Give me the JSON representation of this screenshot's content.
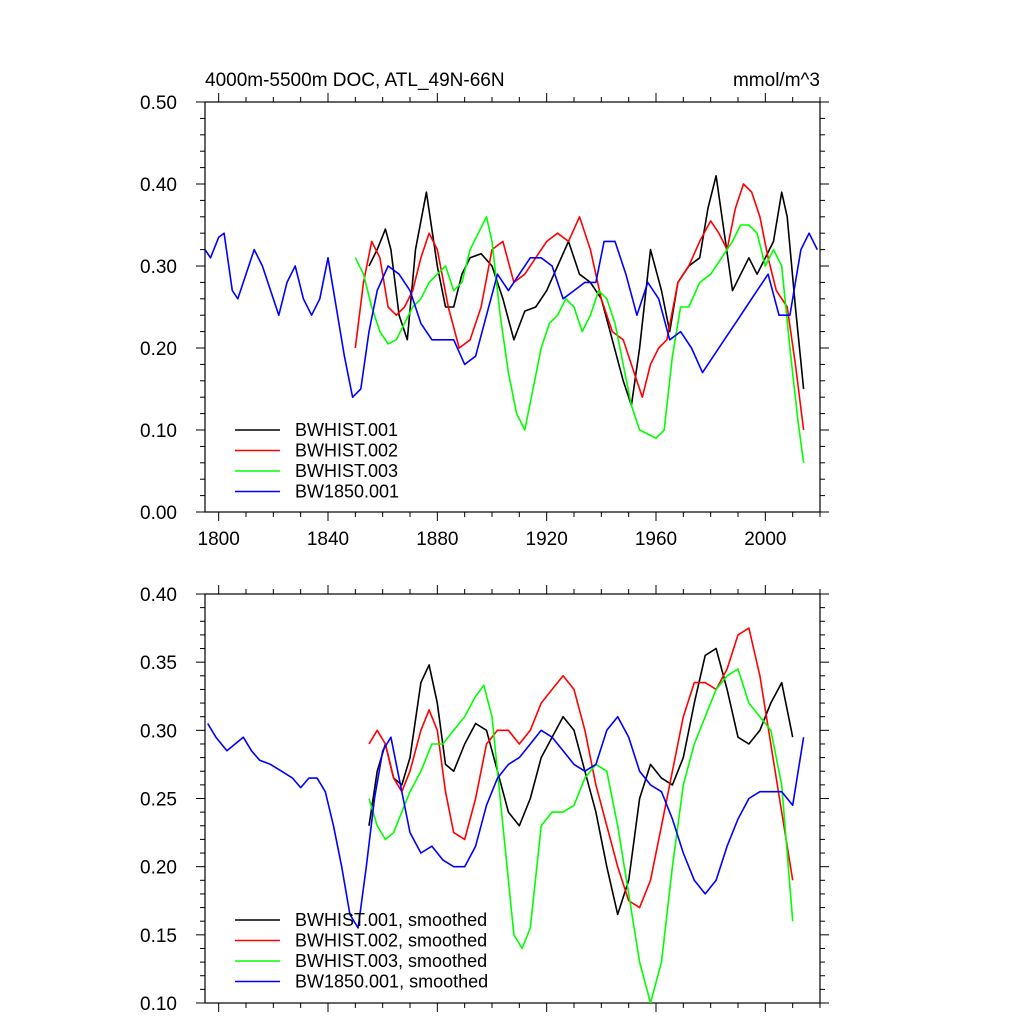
{
  "chart_data": [
    {
      "type": "line",
      "title": "4000m-5500m DOC, ATL_49N-66N",
      "units": "mmol/m^3",
      "xlabel": "",
      "ylabel": "",
      "xlim": [
        1795,
        2020
      ],
      "ylim": [
        0.0,
        0.5
      ],
      "xticks": [
        "1800",
        "1840",
        "1880",
        "1920",
        "1960",
        "2000"
      ],
      "yticks": [
        "0.00",
        "0.10",
        "0.20",
        "0.30",
        "0.40",
        "0.50"
      ],
      "grid": false,
      "legend_position": "bottom-left",
      "series": [
        {
          "name": "BWHIST.001",
          "color": "#000000",
          "x": [
            1855,
            1858,
            1861,
            1863,
            1866,
            1869,
            1872,
            1876,
            1880,
            1883,
            1886,
            1889,
            1892,
            1896,
            1900,
            1904,
            1908,
            1912,
            1916,
            1920,
            1924,
            1928,
            1932,
            1936,
            1940,
            1944,
            1948,
            1951,
            1954,
            1958,
            1962,
            1965,
            1968,
            1972,
            1976,
            1979,
            1982,
            1985,
            1988,
            1991,
            1994,
            1997,
            2000,
            2003,
            2006,
            2008,
            2011,
            2014
          ],
          "y": [
            0.3,
            0.32,
            0.345,
            0.32,
            0.24,
            0.21,
            0.32,
            0.39,
            0.3,
            0.25,
            0.25,
            0.29,
            0.31,
            0.315,
            0.3,
            0.26,
            0.21,
            0.245,
            0.25,
            0.27,
            0.3,
            0.33,
            0.29,
            0.28,
            0.26,
            0.21,
            0.16,
            0.13,
            0.2,
            0.32,
            0.27,
            0.22,
            0.28,
            0.3,
            0.31,
            0.37,
            0.41,
            0.34,
            0.27,
            0.29,
            0.31,
            0.29,
            0.31,
            0.33,
            0.39,
            0.36,
            0.25,
            0.15
          ]
        },
        {
          "name": "BWHIST.002",
          "color": "#ff0000",
          "x": [
            1850,
            1853,
            1856,
            1859,
            1862,
            1865,
            1868,
            1871,
            1874,
            1877,
            1880,
            1884,
            1888,
            1892,
            1896,
            1900,
            1904,
            1908,
            1912,
            1916,
            1920,
            1924,
            1928,
            1932,
            1936,
            1940,
            1944,
            1948,
            1952,
            1955,
            1958,
            1961,
            1964,
            1968,
            1972,
            1976,
            1980,
            1983,
            1986,
            1989,
            1992,
            1995,
            1998,
            2001,
            2004,
            2008,
            2011,
            2014
          ],
          "y": [
            0.2,
            0.28,
            0.33,
            0.31,
            0.25,
            0.24,
            0.25,
            0.27,
            0.31,
            0.34,
            0.32,
            0.25,
            0.2,
            0.21,
            0.25,
            0.32,
            0.33,
            0.28,
            0.29,
            0.31,
            0.33,
            0.34,
            0.33,
            0.36,
            0.32,
            0.26,
            0.22,
            0.21,
            0.17,
            0.14,
            0.18,
            0.2,
            0.21,
            0.28,
            0.3,
            0.33,
            0.355,
            0.34,
            0.32,
            0.37,
            0.4,
            0.39,
            0.36,
            0.31,
            0.27,
            0.25,
            0.18,
            0.1
          ]
        },
        {
          "name": "BWHIST.003",
          "color": "#00ff00",
          "x": [
            1850,
            1853,
            1856,
            1859,
            1862,
            1865,
            1868,
            1871,
            1874,
            1877,
            1880,
            1883,
            1886,
            1889,
            1892,
            1895,
            1898,
            1900,
            1903,
            1906,
            1909,
            1912,
            1915,
            1918,
            1921,
            1924,
            1927,
            1930,
            1933,
            1936,
            1939,
            1942,
            1945,
            1948,
            1951,
            1954,
            1957,
            1960,
            1963,
            1966,
            1969,
            1972,
            1976,
            1980,
            1984,
            1988,
            1991,
            1994,
            1997,
            2000,
            2003,
            2006,
            2009,
            2012,
            2014
          ],
          "y": [
            0.31,
            0.29,
            0.25,
            0.22,
            0.205,
            0.21,
            0.23,
            0.25,
            0.26,
            0.28,
            0.29,
            0.3,
            0.27,
            0.28,
            0.32,
            0.34,
            0.36,
            0.33,
            0.24,
            0.17,
            0.12,
            0.1,
            0.15,
            0.2,
            0.23,
            0.24,
            0.26,
            0.25,
            0.22,
            0.24,
            0.27,
            0.26,
            0.23,
            0.18,
            0.13,
            0.1,
            0.095,
            0.09,
            0.1,
            0.19,
            0.25,
            0.25,
            0.28,
            0.29,
            0.31,
            0.33,
            0.35,
            0.35,
            0.34,
            0.3,
            0.32,
            0.3,
            0.2,
            0.11,
            0.06
          ]
        },
        {
          "name": "BW1850.001",
          "color": "#0000ff",
          "x": [
            1795,
            1797,
            1800,
            1802,
            1805,
            1807,
            1810,
            1813,
            1816,
            1819,
            1822,
            1825,
            1828,
            1831,
            1834,
            1837,
            1840,
            1843,
            1846,
            1849,
            1852,
            1855,
            1858,
            1862,
            1866,
            1870,
            1874,
            1878,
            1882,
            1886,
            1890,
            1894,
            1898,
            1902,
            1906,
            1910,
            1914,
            1918,
            1922,
            1926,
            1930,
            1934,
            1938,
            1941,
            1945,
            1949,
            1953,
            1957,
            1961,
            1965,
            1969,
            1973,
            1977,
            1981,
            1985,
            1989,
            1993,
            1997,
            2001,
            2005,
            2009,
            2013,
            2016,
            2019
          ],
          "y": [
            0.32,
            0.31,
            0.335,
            0.34,
            0.27,
            0.26,
            0.29,
            0.32,
            0.3,
            0.27,
            0.24,
            0.28,
            0.3,
            0.26,
            0.24,
            0.26,
            0.31,
            0.25,
            0.19,
            0.14,
            0.15,
            0.22,
            0.27,
            0.3,
            0.29,
            0.27,
            0.23,
            0.21,
            0.21,
            0.21,
            0.18,
            0.19,
            0.24,
            0.29,
            0.27,
            0.29,
            0.31,
            0.31,
            0.3,
            0.26,
            0.27,
            0.28,
            0.28,
            0.33,
            0.33,
            0.29,
            0.24,
            0.28,
            0.26,
            0.21,
            0.22,
            0.2,
            0.17,
            0.19,
            0.21,
            0.23,
            0.25,
            0.27,
            0.29,
            0.24,
            0.24,
            0.32,
            0.34,
            0.32
          ]
        }
      ]
    },
    {
      "type": "line",
      "title": "",
      "xlabel": "",
      "ylabel": "",
      "xlim": [
        1795,
        2020
      ],
      "ylim": [
        0.1,
        0.4
      ],
      "xticks": [],
      "yticks": [
        "0.10",
        "0.15",
        "0.20",
        "0.25",
        "0.30",
        "0.35",
        "0.40"
      ],
      "grid": false,
      "legend_position": "bottom-left",
      "series": [
        {
          "name": "BWHIST.001, smoothed",
          "color": "#000000",
          "x": [
            1855,
            1858,
            1861,
            1864,
            1867,
            1870,
            1874,
            1877,
            1880,
            1883,
            1886,
            1890,
            1894,
            1898,
            1902,
            1906,
            1910,
            1914,
            1918,
            1922,
            1926,
            1930,
            1934,
            1938,
            1942,
            1946,
            1950,
            1954,
            1958,
            1962,
            1966,
            1970,
            1974,
            1978,
            1982,
            1986,
            1990,
            1994,
            1998,
            2002,
            2006,
            2010
          ],
          "y": [
            0.23,
            0.27,
            0.29,
            0.265,
            0.26,
            0.28,
            0.335,
            0.348,
            0.32,
            0.275,
            0.27,
            0.29,
            0.305,
            0.3,
            0.27,
            0.24,
            0.23,
            0.25,
            0.28,
            0.295,
            0.31,
            0.3,
            0.27,
            0.24,
            0.2,
            0.165,
            0.19,
            0.25,
            0.275,
            0.265,
            0.26,
            0.28,
            0.32,
            0.355,
            0.36,
            0.33,
            0.295,
            0.29,
            0.3,
            0.32,
            0.335,
            0.295
          ]
        },
        {
          "name": "BWHIST.002, smoothed",
          "color": "#ff0000",
          "x": [
            1855,
            1858,
            1861,
            1864,
            1867,
            1870,
            1874,
            1877,
            1880,
            1883,
            1886,
            1890,
            1894,
            1898,
            1902,
            1906,
            1910,
            1914,
            1918,
            1922,
            1926,
            1930,
            1934,
            1938,
            1942,
            1946,
            1950,
            1954,
            1958,
            1962,
            1966,
            1970,
            1974,
            1978,
            1982,
            1986,
            1990,
            1994,
            1998,
            2002,
            2006,
            2010
          ],
          "y": [
            0.29,
            0.3,
            0.29,
            0.265,
            0.255,
            0.27,
            0.3,
            0.315,
            0.3,
            0.255,
            0.225,
            0.22,
            0.25,
            0.29,
            0.3,
            0.3,
            0.29,
            0.3,
            0.32,
            0.33,
            0.34,
            0.33,
            0.3,
            0.26,
            0.23,
            0.2,
            0.175,
            0.17,
            0.19,
            0.23,
            0.27,
            0.31,
            0.335,
            0.335,
            0.33,
            0.345,
            0.37,
            0.375,
            0.34,
            0.29,
            0.24,
            0.19
          ]
        },
        {
          "name": "BWHIST.003, smoothed",
          "color": "#00ff00",
          "x": [
            1855,
            1858,
            1861,
            1864,
            1867,
            1870,
            1874,
            1878,
            1882,
            1886,
            1890,
            1894,
            1897,
            1900,
            1903,
            1906,
            1908,
            1911,
            1914,
            1918,
            1922,
            1926,
            1930,
            1934,
            1938,
            1942,
            1946,
            1950,
            1954,
            1958,
            1962,
            1966,
            1970,
            1974,
            1978,
            1982,
            1986,
            1990,
            1994,
            1998,
            2002,
            2006,
            2010
          ],
          "y": [
            0.25,
            0.23,
            0.22,
            0.225,
            0.24,
            0.255,
            0.27,
            0.29,
            0.29,
            0.3,
            0.31,
            0.325,
            0.333,
            0.31,
            0.25,
            0.19,
            0.15,
            0.14,
            0.155,
            0.23,
            0.24,
            0.24,
            0.245,
            0.265,
            0.275,
            0.27,
            0.23,
            0.18,
            0.13,
            0.1,
            0.13,
            0.2,
            0.26,
            0.29,
            0.31,
            0.33,
            0.34,
            0.345,
            0.32,
            0.31,
            0.3,
            0.26,
            0.16
          ]
        },
        {
          "name": "BW1850.001, smoothed",
          "color": "#0000ff",
          "x": [
            1796,
            1799,
            1803,
            1806,
            1809,
            1812,
            1815,
            1819,
            1823,
            1827,
            1830,
            1833,
            1836,
            1839,
            1842,
            1845,
            1848,
            1851,
            1854,
            1857,
            1860,
            1863,
            1866,
            1870,
            1874,
            1878,
            1882,
            1886,
            1890,
            1894,
            1898,
            1902,
            1906,
            1910,
            1914,
            1918,
            1922,
            1926,
            1930,
            1934,
            1938,
            1942,
            1946,
            1950,
            1954,
            1958,
            1962,
            1966,
            1970,
            1974,
            1978,
            1982,
            1986,
            1990,
            1994,
            1998,
            2002,
            2006,
            2010,
            2014
          ],
          "y": [
            0.305,
            0.295,
            0.285,
            0.29,
            0.295,
            0.285,
            0.278,
            0.275,
            0.27,
            0.265,
            0.258,
            0.265,
            0.265,
            0.255,
            0.23,
            0.2,
            0.165,
            0.155,
            0.2,
            0.25,
            0.285,
            0.295,
            0.265,
            0.225,
            0.21,
            0.215,
            0.205,
            0.2,
            0.2,
            0.215,
            0.245,
            0.265,
            0.275,
            0.28,
            0.29,
            0.3,
            0.295,
            0.285,
            0.275,
            0.27,
            0.275,
            0.3,
            0.31,
            0.295,
            0.27,
            0.26,
            0.255,
            0.235,
            0.21,
            0.19,
            0.18,
            0.19,
            0.215,
            0.235,
            0.25,
            0.255,
            0.255,
            0.255,
            0.245,
            0.295
          ]
        }
      ]
    }
  ]
}
